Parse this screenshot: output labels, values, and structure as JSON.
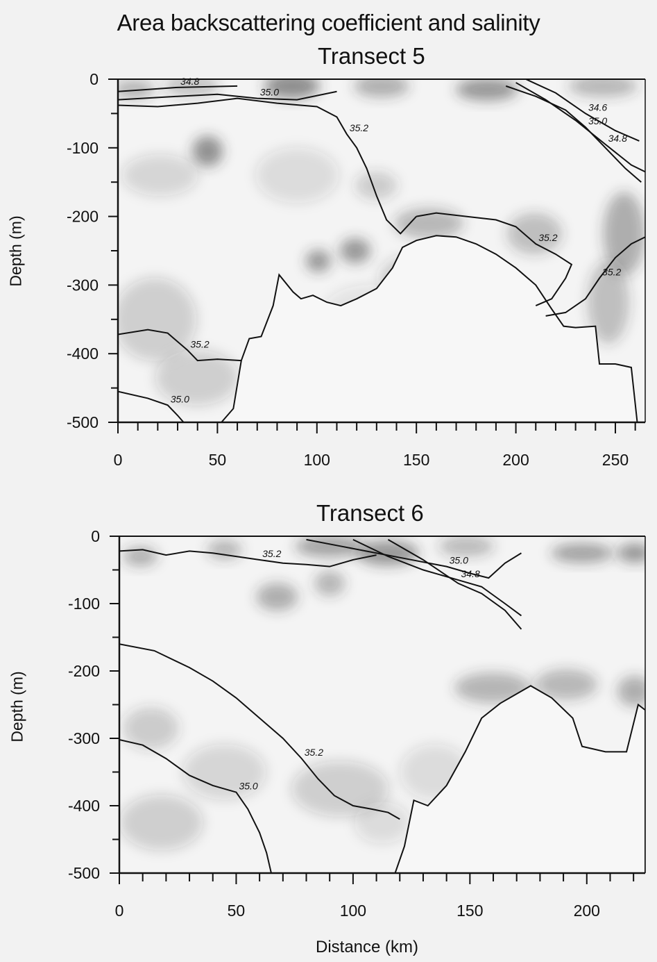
{
  "figure": {
    "title": "Area backscattering coefficient and salinity",
    "xlabel": "Distance (km)"
  },
  "chart_data": [
    {
      "type": "heatmap",
      "title": "Transect 5",
      "ylabel": "Depth (m)",
      "xlabel": "",
      "xlim": [
        0,
        265
      ],
      "ylim": [
        -500,
        0
      ],
      "x_ticks": [
        0,
        50,
        100,
        150,
        200,
        250
      ],
      "x_minor_step": 10,
      "y_ticks": [
        0,
        -100,
        -200,
        -300,
        -400,
        -500
      ],
      "y_minor_step": 50,
      "contour_labels": [
        "34.8",
        "35.0",
        "35.2",
        "35.0",
        "34.6",
        "34.8",
        "35.2",
        "35.2",
        "35.2",
        "35.0"
      ],
      "contours": [
        {
          "level": "35.2",
          "points": [
            [
              0,
              -38
            ],
            [
              20,
              -40
            ],
            [
              40,
              -35
            ],
            [
              60,
              -28
            ],
            [
              80,
              -35
            ],
            [
              100,
              -40
            ],
            [
              110,
              -55
            ],
            [
              115,
              -80
            ],
            [
              120,
              -100
            ],
            [
              125,
              -130
            ],
            [
              130,
              -170
            ],
            [
              135,
              -205
            ],
            [
              142,
              -225
            ],
            [
              150,
              -200
            ]
          ]
        },
        {
          "level": "35.0",
          "points": [
            [
              0,
              -30
            ],
            [
              30,
              -25
            ],
            [
              50,
              -22
            ],
            [
              70,
              -28
            ],
            [
              90,
              -30
            ],
            [
              110,
              -18
            ]
          ]
        },
        {
          "level": "34.8",
          "points": [
            [
              0,
              -18
            ],
            [
              30,
              -12
            ],
            [
              60,
              -10
            ]
          ]
        },
        {
          "level": "35.0",
          "points": [
            [
              195,
              -10
            ],
            [
              210,
              -25
            ],
            [
              225,
              -45
            ],
            [
              235,
              -70
            ],
            [
              245,
              -100
            ],
            [
              255,
              -130
            ],
            [
              263,
              -150
            ]
          ]
        },
        {
          "level": "34.6",
          "points": [
            [
              205,
              0
            ],
            [
              220,
              -20
            ],
            [
              235,
              -50
            ],
            [
              250,
              -75
            ],
            [
              262,
              -90
            ]
          ]
        },
        {
          "level": "34.8",
          "points": [
            [
              200,
              -5
            ],
            [
              215,
              -30
            ],
            [
              230,
              -60
            ],
            [
              245,
              -95
            ],
            [
              258,
              -125
            ],
            [
              265,
              -135
            ]
          ]
        },
        {
          "level": "35.2",
          "points": [
            [
              150,
              -200
            ],
            [
              160,
              -195
            ],
            [
              175,
              -200
            ],
            [
              190,
              -205
            ],
            [
              200,
              -215
            ],
            [
              210,
              -240
            ],
            [
              220,
              -255
            ],
            [
              228,
              -270
            ],
            [
              225,
              -290
            ],
            [
              218,
              -320
            ],
            [
              210,
              -330
            ]
          ]
        },
        {
          "level": "35.2",
          "points": [
            [
              265,
              -230
            ],
            [
              258,
              -240
            ],
            [
              250,
              -260
            ],
            [
              242,
              -290
            ],
            [
              235,
              -320
            ],
            [
              225,
              -340
            ],
            [
              215,
              -345
            ]
          ]
        },
        {
          "level": "35.2",
          "points": [
            [
              0,
              -372
            ],
            [
              15,
              -365
            ],
            [
              25,
              -370
            ],
            [
              35,
              -395
            ],
            [
              40,
              -410
            ],
            [
              50,
              -408
            ],
            [
              62,
              -410
            ]
          ]
        },
        {
          "level": "35.0",
          "points": [
            [
              0,
              -455
            ],
            [
              15,
              -465
            ],
            [
              25,
              -475
            ],
            [
              30,
              -490
            ],
            [
              33,
              -500
            ]
          ]
        }
      ],
      "bottom": [
        [
          52,
          -500
        ],
        [
          58,
          -480
        ],
        [
          62,
          -410
        ],
        [
          66,
          -378
        ],
        [
          72,
          -375
        ],
        [
          78,
          -330
        ],
        [
          81,
          -285
        ],
        [
          88,
          -310
        ],
        [
          92,
          -320
        ],
        [
          98,
          -315
        ],
        [
          105,
          -325
        ],
        [
          112,
          -330
        ],
        [
          120,
          -320
        ],
        [
          130,
          -305
        ],
        [
          138,
          -275
        ],
        [
          143,
          -245
        ],
        [
          150,
          -235
        ],
        [
          160,
          -228
        ],
        [
          170,
          -230
        ],
        [
          180,
          -240
        ],
        [
          190,
          -255
        ],
        [
          200,
          -275
        ],
        [
          210,
          -300
        ],
        [
          218,
          -335
        ],
        [
          224,
          -360
        ],
        [
          230,
          -362
        ],
        [
          240,
          -360
        ],
        [
          242,
          -415
        ],
        [
          250,
          -415
        ],
        [
          258,
          -420
        ],
        [
          261,
          -500
        ]
      ]
    },
    {
      "type": "heatmap",
      "title": "Transect 6",
      "ylabel": "Depth (m)",
      "xlabel": "",
      "xlim": [
        0,
        225
      ],
      "ylim": [
        -500,
        0
      ],
      "x_ticks": [
        0,
        50,
        100,
        150,
        200
      ],
      "x_minor_step": 10,
      "y_ticks": [
        0,
        -100,
        -200,
        -300,
        -400,
        -500
      ],
      "y_minor_step": 50,
      "contour_labels": [
        "35.2",
        "35.0",
        "34.8",
        "35.2",
        "35.0"
      ],
      "contours": [
        {
          "level": "35.2",
          "points": [
            [
              0,
              -22
            ],
            [
              10,
              -20
            ],
            [
              20,
              -28
            ],
            [
              30,
              -22
            ],
            [
              40,
              -25
            ],
            [
              50,
              -30
            ],
            [
              60,
              -35
            ],
            [
              70,
              -40
            ],
            [
              80,
              -42
            ],
            [
              90,
              -45
            ],
            [
              100,
              -35
            ],
            [
              110,
              -28
            ]
          ]
        },
        {
          "level": "35.0",
          "points": [
            [
              80,
              -5
            ],
            [
              95,
              -15
            ],
            [
              110,
              -25
            ],
            [
              125,
              -35
            ],
            [
              140,
              -45
            ],
            [
              150,
              -55
            ],
            [
              158,
              -62
            ],
            [
              165,
              -40
            ],
            [
              172,
              -25
            ]
          ]
        },
        {
          "level": "34.8",
          "points": [
            [
              100,
              -5
            ],
            [
              115,
              -30
            ],
            [
              130,
              -50
            ],
            [
              145,
              -65
            ],
            [
              155,
              -75
            ],
            [
              165,
              -100
            ],
            [
              172,
              -118
            ]
          ]
        },
        {
          "level": "",
          "points": [
            [
              115,
              -5
            ],
            [
              130,
              -35
            ],
            [
              145,
              -70
            ],
            [
              155,
              -85
            ],
            [
              165,
              -110
            ],
            [
              172,
              -138
            ]
          ]
        },
        {
          "level": "35.2",
          "points": [
            [
              0,
              -160
            ],
            [
              15,
              -170
            ],
            [
              30,
              -195
            ],
            [
              40,
              -215
            ],
            [
              50,
              -240
            ],
            [
              60,
              -270
            ],
            [
              70,
              -300
            ],
            [
              78,
              -330
            ],
            [
              85,
              -360
            ],
            [
              92,
              -385
            ],
            [
              100,
              -400
            ],
            [
              108,
              -405
            ],
            [
              115,
              -410
            ],
            [
              120,
              -420
            ]
          ]
        },
        {
          "level": "35.0",
          "points": [
            [
              0,
              -302
            ],
            [
              10,
              -310
            ],
            [
              20,
              -330
            ],
            [
              30,
              -355
            ],
            [
              40,
              -370
            ],
            [
              50,
              -380
            ],
            [
              55,
              -405
            ],
            [
              60,
              -440
            ],
            [
              63,
              -470
            ],
            [
              65,
              -500
            ]
          ]
        }
      ],
      "bottom": [
        [
          118,
          -500
        ],
        [
          122,
          -460
        ],
        [
          126,
          -392
        ],
        [
          132,
          -400
        ],
        [
          140,
          -370
        ],
        [
          148,
          -320
        ],
        [
          155,
          -270
        ],
        [
          163,
          -248
        ],
        [
          176,
          -222
        ],
        [
          185,
          -240
        ],
        [
          194,
          -270
        ],
        [
          198,
          -312
        ],
        [
          208,
          -320
        ],
        [
          217,
          -320
        ],
        [
          222,
          -250
        ],
        [
          225,
          -258
        ]
      ]
    }
  ]
}
